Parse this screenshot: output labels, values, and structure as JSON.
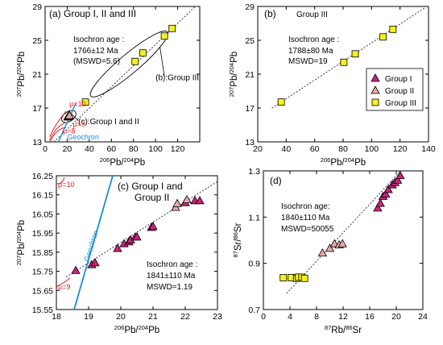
{
  "colors": {
    "group1": "#c8247c",
    "group2": "#e8a8a8",
    "group3": "#f3f31a",
    "geochron": "#1a8fd6",
    "mu": "#e02020",
    "isochron": "#333366"
  },
  "chart_data": [
    {
      "id": "a",
      "type": "scatter",
      "panel_label": "(a)",
      "title": "Group I, II and  III",
      "xlabel": "206Pb/204Pb",
      "ylabel": "207Pb/204Pb",
      "xlim": [
        0,
        140
      ],
      "ylim": [
        13,
        29
      ],
      "xticks": [
        "0",
        "20",
        "40",
        "60",
        "80",
        "100",
        "120"
      ],
      "yticks": [
        "13",
        "17",
        "21",
        "25",
        "29"
      ],
      "isochron_text": [
        "Isochron age :",
        "1766±12 Ma",
        "(MSWD=5.6)"
      ],
      "callout_b": "(b):Group III",
      "callout_c": "(c):Group I and II",
      "mu_labels": [
        "μ=10",
        "μ=9",
        "μ=8"
      ],
      "geochron_label": "Geochron",
      "series": [
        {
          "group": "group3",
          "points": [
            [
              36.5,
              17.7
            ],
            [
              81.5,
              22.5
            ],
            [
              88.5,
              23.5
            ],
            [
              108,
              25.5
            ],
            [
              115,
              26.4
            ]
          ]
        },
        {
          "group": "group1",
          "points": [
            [
              20.5,
              15.95
            ],
            [
              21,
              16.0
            ],
            [
              21.6,
              16.05
            ],
            [
              22.2,
              16.1
            ]
          ]
        },
        {
          "group": "group2",
          "points": [
            [
              21.5,
              16.08
            ],
            [
              22,
              16.12
            ]
          ]
        }
      ],
      "isochron_line": [
        [
          8,
          13
        ],
        [
          140,
          29.5
        ]
      ]
    },
    {
      "id": "b",
      "type": "scatter",
      "panel_label": "(b)",
      "title": "Group III",
      "xlabel": "206Pb/204Pb",
      "ylabel": "207Pb/204Pb",
      "xlim": [
        20,
        140
      ],
      "ylim": [
        13,
        29
      ],
      "xticks": [
        "20",
        "40",
        "60",
        "80",
        "100",
        "120",
        "140"
      ],
      "yticks": [
        "13",
        "17",
        "21",
        "25",
        "29"
      ],
      "isochron_text": [
        "Isochron age :",
        "1788±80 Ma",
        "MSWD=19"
      ],
      "legend": [
        "Group I",
        "Group II",
        "Group III"
      ],
      "legend_position": "right",
      "series": [
        {
          "group": "group3",
          "points": [
            [
              36.5,
              17.7
            ],
            [
              80.5,
              22.4
            ],
            [
              88.5,
              23.4
            ],
            [
              108,
              25.4
            ],
            [
              115,
              26.3
            ]
          ]
        }
      ],
      "isochron_line": [
        [
          30,
          17
        ],
        [
          138,
          28.9
        ]
      ]
    },
    {
      "id": "c",
      "type": "scatter",
      "panel_label": "(c)",
      "title": "Group I and Group II",
      "title_lines": [
        "Group I and",
        "Group II"
      ],
      "xlabel": "206Pb/204Pb",
      "ylabel": "207Pb/204Pb",
      "xlim": [
        18,
        23
      ],
      "ylim": [
        15.55,
        16.25
      ],
      "xticks": [
        "18",
        "19",
        "20",
        "21",
        "22",
        "23"
      ],
      "yticks": [
        "15.55",
        "15.65",
        "15.75",
        "15.85",
        "15.95",
        "16.05",
        "16.15",
        "16.25"
      ],
      "isochron_text": [
        "Isochron age :",
        "1841±110 Ma",
        "MSWD=1.19"
      ],
      "mu_labels": [
        "μ=10",
        "μ=9"
      ],
      "geochron_label": "Geochron",
      "series": [
        {
          "group": "group1",
          "points": [
            [
              18.6,
              15.755
            ],
            [
              19.1,
              15.785
            ],
            [
              19.2,
              15.795
            ],
            [
              19.9,
              15.87
            ],
            [
              20.1,
              15.895
            ],
            [
              20.25,
              15.905
            ],
            [
              20.3,
              15.915
            ],
            [
              20.45,
              15.93
            ],
            [
              20.5,
              15.93
            ],
            [
              20.95,
              15.98
            ],
            [
              21.0,
              15.985
            ],
            [
              22.0,
              16.11
            ],
            [
              22.3,
              16.12
            ],
            [
              22.45,
              16.12
            ]
          ]
        },
        {
          "group": "group2",
          "points": [
            [
              21.7,
              16.085
            ],
            [
              21.75,
              16.105
            ],
            [
              22.05,
              16.125
            ]
          ]
        }
      ],
      "isochron_line": [
        [
          18.3,
          15.72
        ],
        [
          23,
          16.22
        ]
      ],
      "geochron_line": [
        [
          18.55,
          15.55
        ],
        [
          19.75,
          16.25
        ]
      ]
    },
    {
      "id": "d",
      "type": "scatter",
      "panel_label": "(d)",
      "title": "",
      "xlabel": "87Rb/86Sr",
      "ylabel": "87Sr/86Sr",
      "xlim": [
        0,
        24
      ],
      "ylim": [
        0.7,
        1.3
      ],
      "xticks": [
        "0",
        "4",
        "8",
        "12",
        "16",
        "20",
        "24"
      ],
      "yticks": [
        "0.7",
        "0.9",
        "1.1",
        "1.3"
      ],
      "isochron_text": [
        "Isochron age:",
        "1840±110 Ma",
        "MSWD=50055"
      ],
      "series": [
        {
          "group": "group3",
          "points": [
            [
              3.0,
              0.838
            ],
            [
              4.2,
              0.838
            ],
            [
              5.0,
              0.835
            ],
            [
              5.3,
              0.84
            ],
            [
              5.8,
              0.84
            ],
            [
              6.2,
              0.835
            ]
          ]
        },
        {
          "group": "group2",
          "points": [
            [
              8.9,
              0.945
            ],
            [
              10.0,
              0.965
            ],
            [
              10.7,
              0.985
            ],
            [
              11.4,
              0.98
            ],
            [
              11.9,
              0.985
            ]
          ]
        },
        {
          "group": "group1",
          "points": [
            [
              17.2,
              1.14
            ],
            [
              17.6,
              1.16
            ],
            [
              18.0,
              1.19
            ],
            [
              18.4,
              1.2
            ],
            [
              18.8,
              1.22
            ],
            [
              19.4,
              1.24
            ],
            [
              19.8,
              1.25
            ],
            [
              20.2,
              1.26
            ],
            [
              20.6,
              1.28
            ]
          ]
        }
      ],
      "isochron_line": [
        [
          3.5,
          0.77
        ],
        [
          21.8,
          1.335
        ]
      ]
    }
  ]
}
